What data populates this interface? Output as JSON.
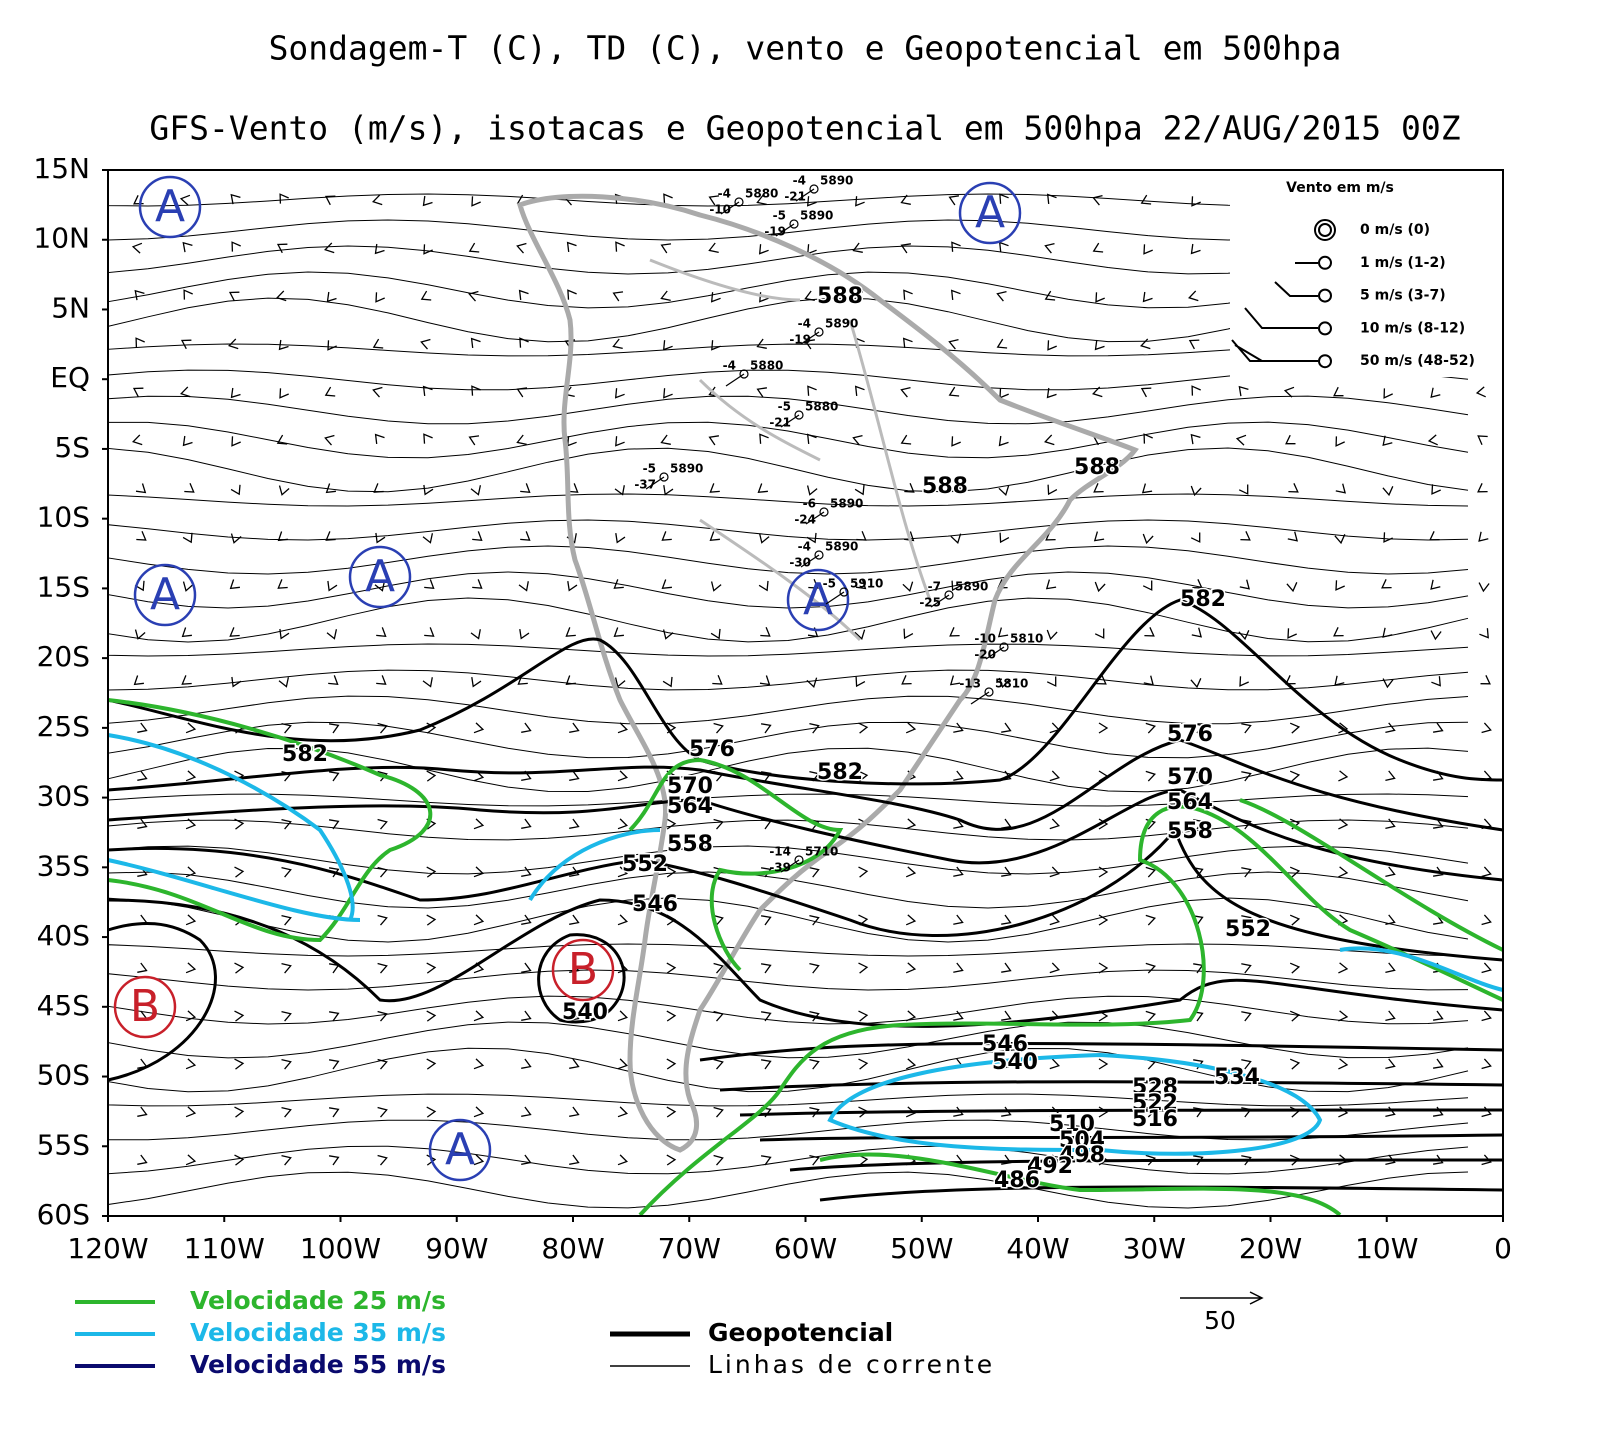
{
  "title": "Sondagem-T (C), TD (C), vento e Geopotencial em 500hpa",
  "subtitle": "GFS-Vento (m/s), isotacas e Geopotencial em 500hpa 22/AUG/2015 00Z",
  "lat_ticks": [
    {
      "value": 15,
      "label": "15N"
    },
    {
      "value": 10,
      "label": "10N"
    },
    {
      "value": 5,
      "label": "5N"
    },
    {
      "value": 0,
      "label": "EQ"
    },
    {
      "value": -5,
      "label": "5S"
    },
    {
      "value": -10,
      "label": "10S"
    },
    {
      "value": -15,
      "label": "15S"
    },
    {
      "value": -20,
      "label": "20S"
    },
    {
      "value": -25,
      "label": "25S"
    },
    {
      "value": -30,
      "label": "30S"
    },
    {
      "value": -35,
      "label": "35S"
    },
    {
      "value": -40,
      "label": "40S"
    },
    {
      "value": -45,
      "label": "45S"
    },
    {
      "value": -50,
      "label": "50S"
    },
    {
      "value": -55,
      "label": "55S"
    },
    {
      "value": -60,
      "label": "60S"
    }
  ],
  "lon_ticks": [
    {
      "value": -120,
      "label": "120W"
    },
    {
      "value": -110,
      "label": "110W"
    },
    {
      "value": -100,
      "label": "100W"
    },
    {
      "value": -90,
      "label": "90W"
    },
    {
      "value": -80,
      "label": "80W"
    },
    {
      "value": -70,
      "label": "70W"
    },
    {
      "value": -60,
      "label": "60W"
    },
    {
      "value": -50,
      "label": "50W"
    },
    {
      "value": -40,
      "label": "40W"
    },
    {
      "value": -30,
      "label": "30W"
    },
    {
      "value": -20,
      "label": "20W"
    },
    {
      "value": -10,
      "label": "10W"
    },
    0
  ],
  "pressure_centers": [
    "A",
    "A",
    "A",
    "A",
    "A",
    "A",
    "B",
    "B"
  ],
  "geopotential_labels": [
    588,
    588,
    588,
    582,
    582,
    582,
    576,
    576,
    570,
    570,
    564,
    564,
    558,
    558,
    552,
    552,
    546,
    546,
    540,
    540,
    534,
    528,
    522,
    516,
    510,
    504,
    498,
    492,
    486
  ],
  "stations": [
    {
      "t": -4,
      "z": 5880,
      "td": -10
    },
    {
      "t": -4,
      "z": 5890,
      "td": -21
    },
    {
      "t": -5,
      "z": 5890,
      "td": -19
    },
    {
      "t": -4,
      "z": 5890,
      "td": -19
    },
    {
      "t": -4,
      "z": 5880
    },
    {
      "t": -5,
      "z": 5880,
      "td": -21
    },
    {
      "t": -5,
      "z": 5890,
      "td": -37
    },
    {
      "t": -6,
      "z": 5890,
      "td": -24
    },
    {
      "t": -4,
      "z": 5890,
      "td": -30
    },
    {
      "t": -5,
      "z": 5910
    },
    {
      "t": -7,
      "z": 5890,
      "td": -25
    },
    {
      "t": -10,
      "z": 5810,
      "td": -20
    },
    {
      "t": -13,
      "z": 5810
    },
    {
      "t": -14,
      "z": 5710,
      "td": -39
    }
  ],
  "wind_legend": {
    "title": "Vento em m/s",
    "entries": [
      "0 m/s (0)",
      "1 m/s (1-2)",
      "5 m/s (3-7)",
      "10 m/s (8-12)",
      "50 m/s (48-52)"
    ]
  },
  "legend": [
    "Velocidade 25 m/s",
    "Velocidade 35 m/s",
    "Velocidade 55 m/s",
    "Geopotencial",
    "Linhas de corrente"
  ],
  "reference_vector": 50
}
